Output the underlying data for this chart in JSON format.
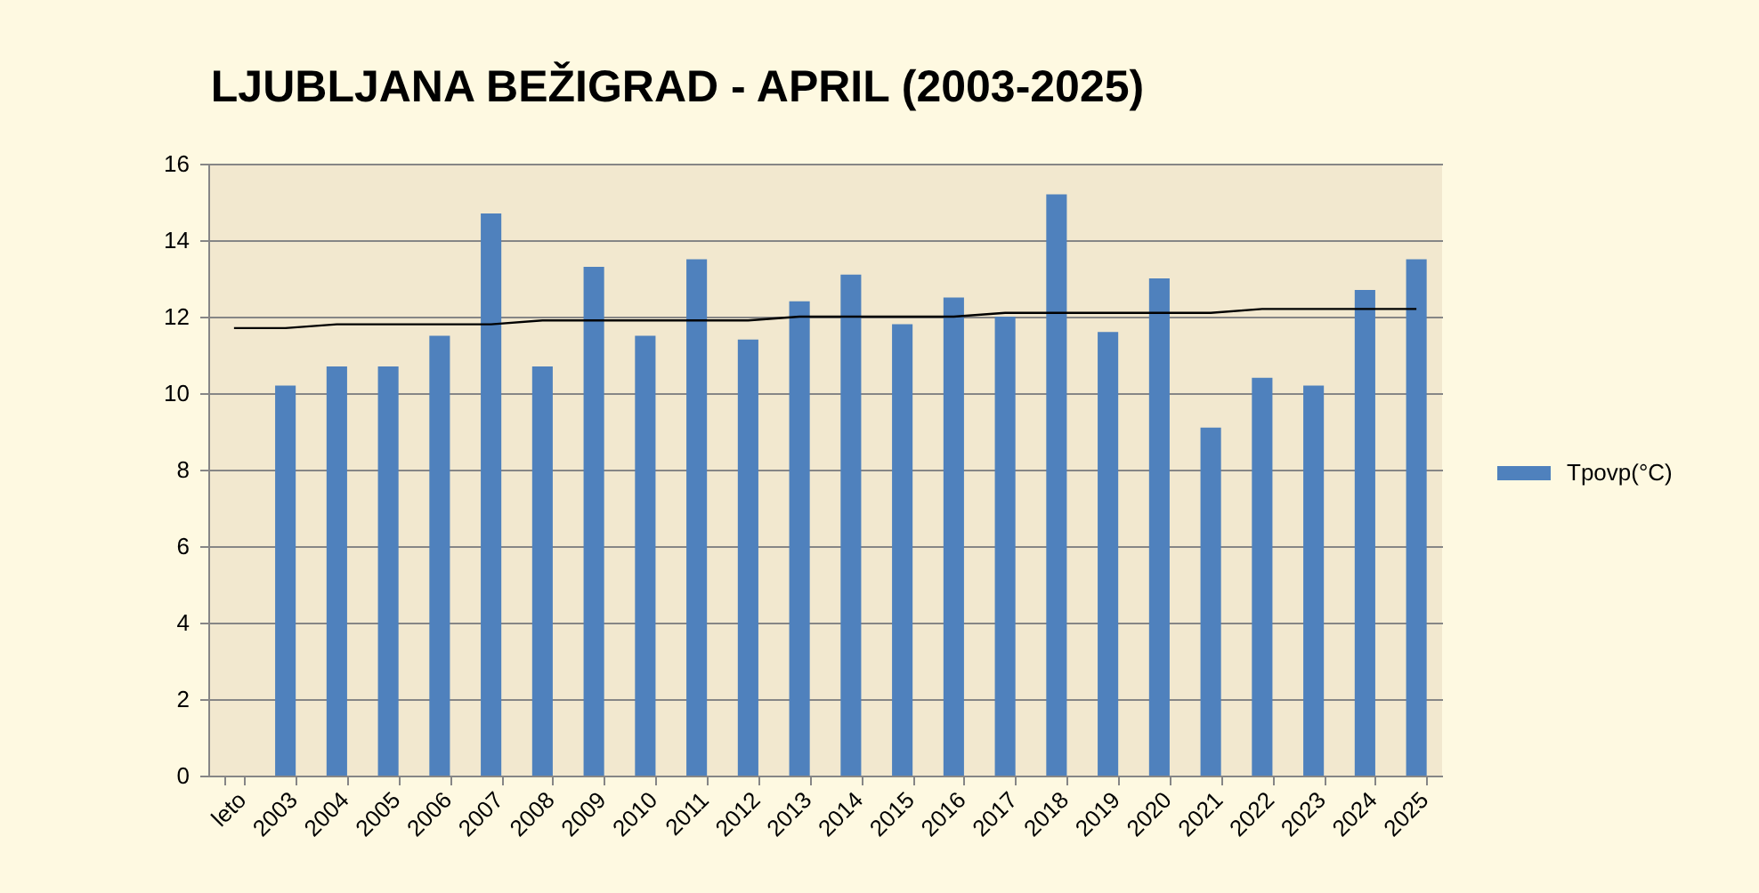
{
  "chart_data": {
    "type": "bar",
    "title": "LJUBLJANA BEŽIGRAD - APRIL (2003-2025)",
    "categories": [
      "leto",
      "2003",
      "2004",
      "2005",
      "2006",
      "2007",
      "2008",
      "2009",
      "2010",
      "2011",
      "2012",
      "2013",
      "2014",
      "2015",
      "2016",
      "2017",
      "2018",
      "2019",
      "2020",
      "2021",
      "2022",
      "2023",
      "2024",
      "2025"
    ],
    "series": [
      {
        "name": "Tpovp(°C)",
        "color": "#4f81bd",
        "values": [
          null,
          10.2,
          10.7,
          10.7,
          11.5,
          14.7,
          10.7,
          13.3,
          11.5,
          13.5,
          11.4,
          12.4,
          13.1,
          11.8,
          12.5,
          12.0,
          15.2,
          11.6,
          13.0,
          9.1,
          10.4,
          10.2,
          12.7,
          13.5
        ]
      },
      {
        "type": "line",
        "values": [
          11.7,
          11.7,
          11.8,
          11.8,
          11.8,
          11.8,
          11.9,
          11.9,
          11.9,
          11.9,
          11.9,
          12.0,
          12.0,
          12.0,
          12.0,
          12.1,
          12.1,
          12.1,
          12.1,
          12.1,
          12.2,
          12.2,
          12.2,
          12.2
        ],
        "color": "#000000"
      }
    ],
    "ylim": [
      0,
      16
    ],
    "yticks": [
      0,
      2,
      4,
      6,
      8,
      10,
      12,
      14,
      16
    ],
    "grid": "y",
    "legend": "right"
  }
}
